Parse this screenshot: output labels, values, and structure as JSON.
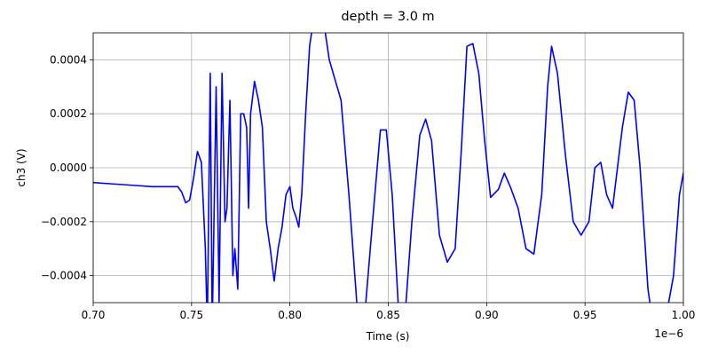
{
  "chart_data": {
    "type": "line",
    "title": "depth = 3.0 m",
    "x_label": "Time (s)",
    "y_label": "ch3 (V)",
    "x_offset_label": "1e−6",
    "xlim": [
      0.7,
      1.0
    ],
    "ylim": [
      -0.0005,
      0.0005
    ],
    "xticks": [
      {
        "value": 0.7,
        "label": "0.70"
      },
      {
        "value": 0.75,
        "label": "0.75"
      },
      {
        "value": 0.8,
        "label": "0.80"
      },
      {
        "value": 0.85,
        "label": "0.85"
      },
      {
        "value": 0.9,
        "label": "0.90"
      },
      {
        "value": 0.95,
        "label": "0.95"
      },
      {
        "value": 1.0,
        "label": "1.00"
      }
    ],
    "yticks": [
      {
        "value": -0.0004,
        "label": "−0.0004"
      },
      {
        "value": -0.0002,
        "label": "−0.0002"
      },
      {
        "value": 0,
        "label": "0.0000"
      },
      0.0002,
      0.0004
    ],
    "grid": true,
    "x": [
      0.7,
      0.71,
      0.72,
      0.73,
      0.74,
      0.743,
      0.745,
      0.747,
      0.749,
      0.751,
      0.753,
      0.755,
      0.757,
      0.758,
      0.7595,
      0.7605,
      0.7625,
      0.764,
      0.7655,
      0.767,
      0.768,
      0.7695,
      0.771,
      0.772,
      0.7735,
      0.775,
      0.7765,
      0.778,
      0.779,
      0.78,
      0.782,
      0.784,
      0.786,
      0.788,
      0.79,
      0.792,
      0.794,
      0.796,
      0.798,
      0.8,
      0.8015,
      0.803,
      0.8045,
      0.806,
      0.808,
      0.81,
      0.812,
      0.817,
      0.82,
      0.824,
      0.826,
      0.83,
      0.834,
      0.838,
      0.842,
      0.846,
      0.849,
      0.852,
      0.855,
      0.858,
      0.862,
      0.866,
      0.869,
      0.872,
      0.876,
      0.88,
      0.884,
      0.887,
      0.89,
      0.893,
      0.896,
      0.899,
      0.902,
      0.906,
      0.909,
      0.912,
      0.916,
      0.92,
      0.924,
      0.928,
      0.931,
      0.933,
      0.936,
      0.94,
      0.944,
      0.948,
      0.952,
      0.955,
      0.958,
      0.961,
      0.964,
      0.969,
      0.972,
      0.975,
      0.978,
      0.982,
      0.985,
      0.99,
      0.995,
      0.998,
      1.0
    ],
    "series": [
      {
        "name": "ch3",
        "color": "#0000ff",
        "values": [
          -5.5e-05,
          -6e-05,
          -6.5e-05,
          -7e-05,
          -7e-05,
          -7e-05,
          -9e-05,
          -0.00013,
          -0.00012,
          -4e-05,
          6e-05,
          2e-05,
          -0.0003,
          -0.0006,
          0.00035,
          -0.0006,
          0.0003,
          -0.0005,
          0.00035,
          -0.0002,
          -0.00015,
          0.00025,
          -0.0004,
          -0.0003,
          -0.00045,
          0.0002,
          0.0002,
          0.00015,
          -0.00015,
          0.0002,
          0.00032,
          0.00025,
          0.00015,
          -0.0002,
          -0.0003,
          -0.00042,
          -0.0003,
          -0.00022,
          -0.0001,
          -7e-05,
          -0.00015,
          -0.00018,
          -0.00022,
          -0.0001,
          0.0002,
          0.00045,
          0.00055,
          0.00055,
          0.0004,
          0.0003,
          0.00025,
          -0.0001,
          -0.0005,
          -0.00055,
          -0.0002,
          0.00014,
          0.00014,
          -0.0001,
          -0.0005,
          -0.0006,
          -0.0002,
          0.00012,
          0.00018,
          0.0001,
          -0.00025,
          -0.00035,
          -0.0003,
          5e-05,
          0.00045,
          0.00046,
          0.00035,
          0.0001,
          -0.00011,
          -8e-05,
          -2e-05,
          -7e-05,
          -0.00015,
          -0.0003,
          -0.00032,
          -0.0001,
          0.0003,
          0.00045,
          0.00035,
          5e-05,
          -0.0002,
          -0.00025,
          -0.0002,
          0,
          2e-05,
          -0.0001,
          -0.00015,
          0.00015,
          0.00028,
          0.00025,
          0,
          -0.00045,
          -0.0006,
          -0.0006,
          -0.0004,
          -0.0001,
          -2e-05
        ]
      }
    ]
  }
}
